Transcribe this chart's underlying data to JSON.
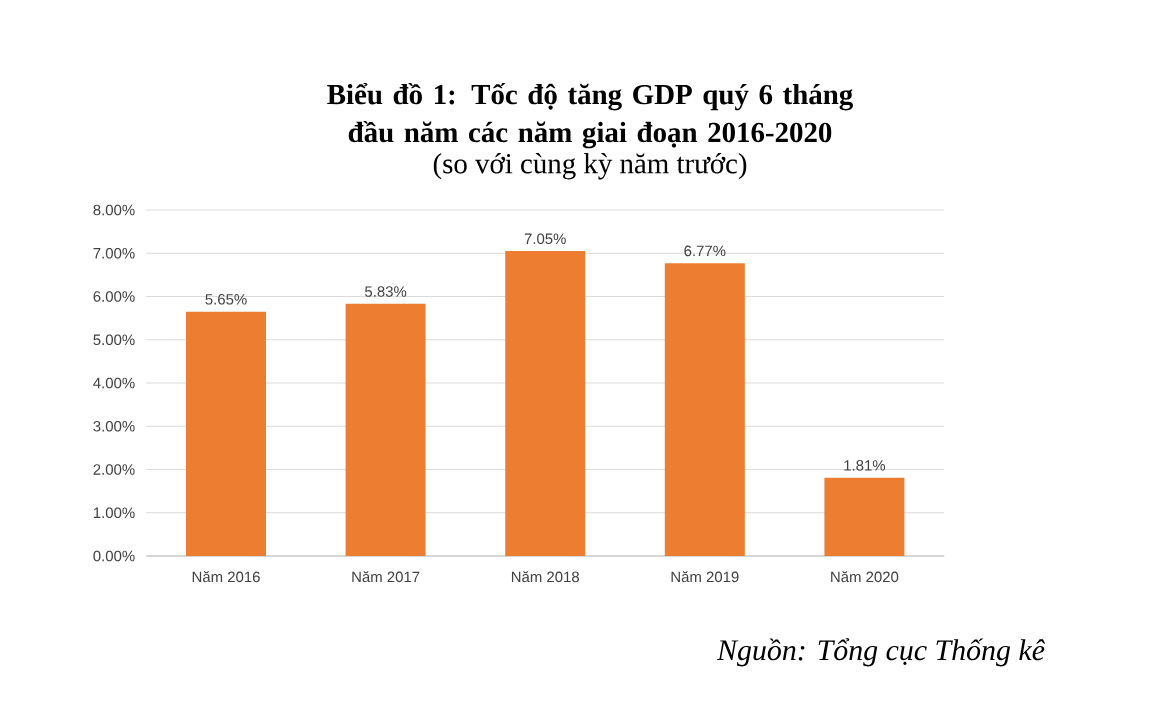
{
  "chart_data": {
    "type": "bar",
    "title": "Biểu đồ 1: Tốc độ tăng GDP quý 6 tháng đầu năm các năm giai đoạn 2016-2020",
    "subtitle": "(so với cùng kỳ năm trước)",
    "categories": [
      "Năm 2016",
      "Năm 2017",
      "Năm 2018",
      "Năm 2019",
      "Năm 2020"
    ],
    "values": [
      5.65,
      5.83,
      7.05,
      6.77,
      1.81
    ],
    "value_labels": [
      "5.65%",
      "5.83%",
      "7.05%",
      "6.77%",
      "1.81%"
    ],
    "color": "#ed7d31",
    "ylim": [
      0,
      8
    ],
    "yticks": [
      {
        "value": 0,
        "label": "0.00%"
      },
      {
        "value": 1,
        "label": "1.00%"
      },
      {
        "value": 2,
        "label": "2.00%"
      },
      {
        "value": 3,
        "label": "3.00%"
      },
      {
        "value": 4,
        "label": "4.00%"
      },
      {
        "value": 5,
        "label": "5.00%"
      },
      {
        "value": 6,
        "label": "6.00%"
      },
      {
        "value": 7,
        "label": "7.00%"
      },
      {
        "value": 8,
        "label": "8.00%"
      }
    ],
    "grid": "y",
    "annotations": [
      "Nguồn: Tổng cục Thống kê"
    ]
  }
}
